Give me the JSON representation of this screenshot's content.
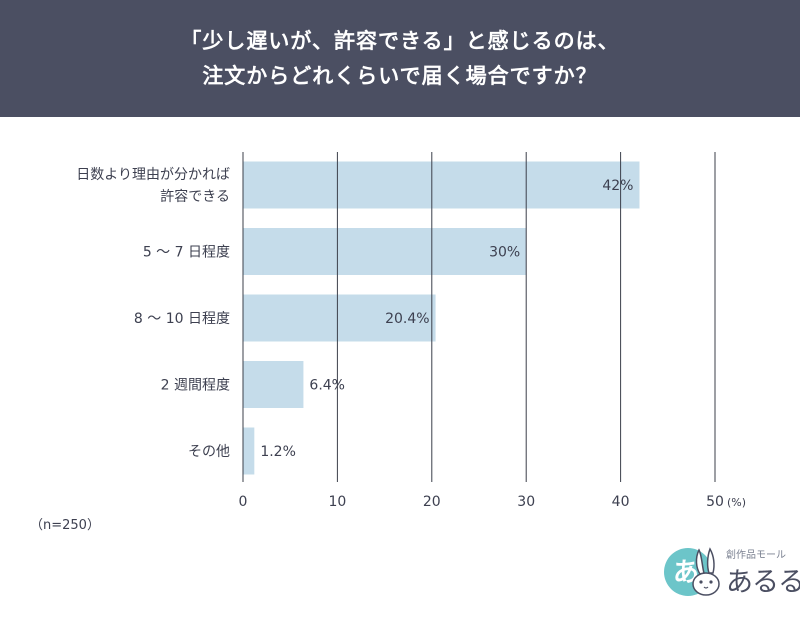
{
  "header": {
    "line1": "「少し遅いが、許容できる」と感じるのは、",
    "line2": "注文からどれくらいで届く場合ですか？"
  },
  "note": "（n=250）",
  "logo": {
    "sub": "創作品モール",
    "name": "あるる",
    "badge_char": "あ"
  },
  "chart_data": {
    "type": "bar",
    "orientation": "horizontal",
    "title": "「少し遅いが、許容できる」と感じるのは、注文からどれくらいで届く場合ですか？",
    "categories": [
      [
        "日数より理由が分かれば",
        "許容できる"
      ],
      [
        "5 〜 7 日程度"
      ],
      [
        "8 〜 10 日程度"
      ],
      [
        "2 週間程度"
      ],
      [
        "その他"
      ]
    ],
    "values": [
      42,
      30,
      20.4,
      6.4,
      1.2
    ],
    "value_labels": [
      "42%",
      "30%",
      "20.4%",
      "6.4%",
      "1.2%"
    ],
    "xlim": [
      0,
      50
    ],
    "xticks": [
      0,
      10,
      20,
      30,
      40,
      50
    ],
    "tick_labels": [
      "0",
      "10",
      "20",
      "30",
      "40",
      "50"
    ],
    "unit_label": "(%)",
    "grid": true,
    "colors": {
      "bar": "#c5dcea",
      "grid": "#3b3f4a",
      "text": "#3d4050"
    }
  }
}
